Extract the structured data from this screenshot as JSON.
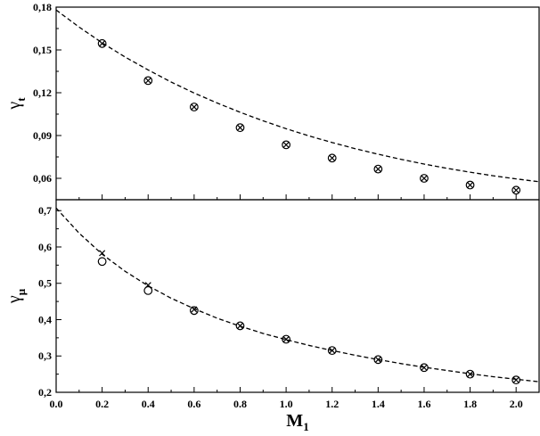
{
  "chart_data": [
    {
      "type": "scatter",
      "panel": "top",
      "xlabel": "",
      "ylabel": "γ",
      "ylabel_sub": "t",
      "xlim": [
        0.0,
        2.1
      ],
      "ylim": [
        0.045,
        0.18
      ],
      "yticks": [
        0.06,
        0.09,
        0.12,
        0.15,
        0.18
      ],
      "ytick_labels": [
        "0,06",
        "0,09",
        "0,12",
        "0,15",
        "0,18"
      ],
      "series": [
        {
          "marker": "circle",
          "x": [
            0.2,
            0.4,
            0.6,
            0.8,
            1.0,
            1.2,
            1.4,
            1.6,
            1.8,
            2.0
          ],
          "y": [
            0.1545,
            0.1285,
            0.11,
            0.0955,
            0.0835,
            0.0742,
            0.0665,
            0.06,
            0.0553,
            0.0517
          ]
        },
        {
          "marker": "cross",
          "x": [
            0.2,
            0.4,
            0.6,
            0.8,
            1.0,
            1.2,
            1.4,
            1.6,
            1.8,
            2.0
          ],
          "y": [
            0.1545,
            0.1285,
            0.11,
            0.0955,
            0.0835,
            0.0742,
            0.0665,
            0.06,
            0.0553,
            0.0517
          ]
        },
        {
          "marker": "dashed-line",
          "x": [
            0.0,
            0.1,
            0.2,
            0.3,
            0.4,
            0.5,
            0.6,
            0.7,
            0.8,
            0.9,
            1.0,
            1.1,
            1.2,
            1.3,
            1.4,
            1.5,
            1.6,
            1.7,
            1.8,
            1.9,
            2.0,
            2.1
          ],
          "y": [
            0.178,
            0.166,
            0.155,
            0.145,
            0.136,
            0.1275,
            0.1198,
            0.1128,
            0.1063,
            0.1003,
            0.0948,
            0.0897,
            0.0851,
            0.0808,
            0.0769,
            0.0733,
            0.07,
            0.067,
            0.0643,
            0.0618,
            0.0596,
            0.0576
          ]
        }
      ]
    },
    {
      "type": "scatter",
      "panel": "bottom",
      "xlabel": "M",
      "xlabel_sub": "1",
      "ylabel": "γ",
      "ylabel_sub": "μ",
      "xlim": [
        0.0,
        2.1
      ],
      "ylim": [
        0.2,
        0.73
      ],
      "xticks": [
        0.0,
        0.2,
        0.4,
        0.6,
        0.8,
        1.0,
        1.2,
        1.4,
        1.6,
        1.8,
        2.0
      ],
      "xtick_labels": [
        "0.0",
        "0.2",
        "0.4",
        "0.6",
        "0.8",
        "1.0",
        "1.2",
        "1.4",
        "1.6",
        "1.8",
        "2.0"
      ],
      "yticks": [
        0.2,
        0.3,
        0.4,
        0.5,
        0.6,
        0.7
      ],
      "ytick_labels": [
        "0,2",
        "0,3",
        "0,4",
        "0,5",
        "0,6",
        "0,7"
      ],
      "series": [
        {
          "marker": "circle",
          "x": [
            0.2,
            0.4,
            0.6,
            0.8,
            1.0,
            1.2,
            1.4,
            1.6,
            1.8,
            2.0
          ],
          "y": [
            0.56,
            0.48,
            0.425,
            0.383,
            0.346,
            0.315,
            0.29,
            0.268,
            0.25,
            0.234
          ]
        },
        {
          "marker": "cross",
          "x": [
            0.2,
            0.4,
            0.6,
            0.8,
            1.0,
            1.2,
            1.4,
            1.6,
            1.8,
            2.0
          ],
          "y": [
            0.583,
            0.495,
            0.428,
            0.383,
            0.346,
            0.315,
            0.29,
            0.268,
            0.25,
            0.234
          ]
        },
        {
          "marker": "dashed-line",
          "x": [
            0.0,
            0.1,
            0.2,
            0.3,
            0.4,
            0.5,
            0.6,
            0.7,
            0.8,
            0.9,
            1.0,
            1.1,
            1.2,
            1.3,
            1.4,
            1.5,
            1.6,
            1.7,
            1.8,
            1.9,
            2.0,
            2.1
          ],
          "y": [
            0.707,
            0.638,
            0.58,
            0.533,
            0.493,
            0.459,
            0.43,
            0.404,
            0.382,
            0.362,
            0.345,
            0.329,
            0.315,
            0.302,
            0.29,
            0.279,
            0.269,
            0.26,
            0.251,
            0.243,
            0.236,
            0.229
          ]
        }
      ]
    }
  ]
}
